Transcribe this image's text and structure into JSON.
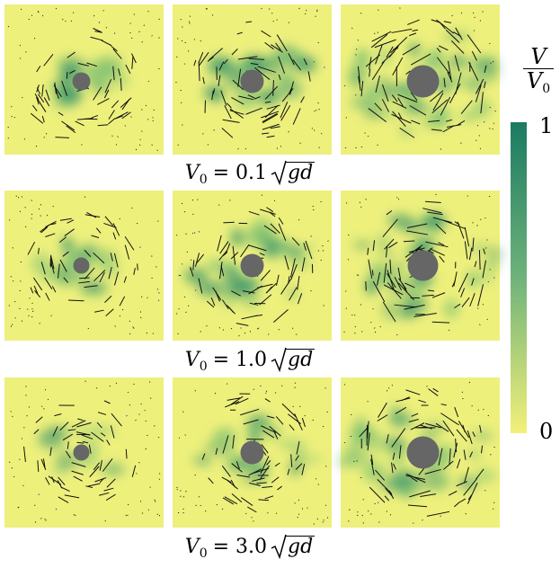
{
  "rows": [
    {
      "label": {
        "base": "V",
        "sub": "0",
        "eq": "= 0.1",
        "radicand": "gd"
      }
    },
    {
      "label": {
        "base": "V",
        "sub": "0",
        "eq": "= 1.0",
        "radicand": "gd"
      }
    },
    {
      "label": {
        "base": "V",
        "sub": "0",
        "eq": "= 3.0",
        "radicand": "gd"
      }
    }
  ],
  "colorbar": {
    "title": {
      "numerator": "V",
      "denominator": "V",
      "denominator_sub": "0"
    },
    "max_label": "1",
    "min_label": "0"
  }
}
